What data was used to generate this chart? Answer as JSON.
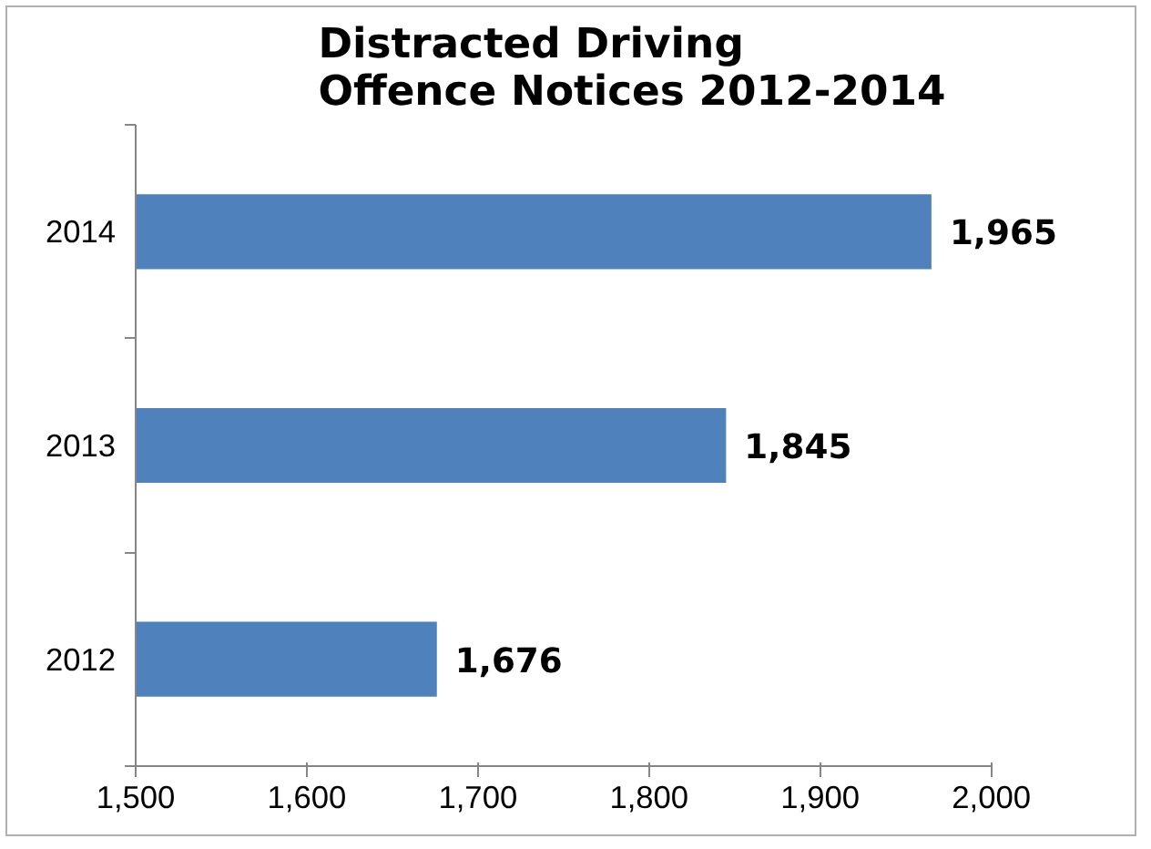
{
  "chart_data": {
    "type": "bar",
    "orientation": "horizontal",
    "title": "Distracted Driving Offence Notices 2012-2014",
    "categories": [
      "2014",
      "2013",
      "2012"
    ],
    "values": [
      1965,
      1845,
      1676
    ],
    "value_labels": [
      "1,965",
      "1,845",
      "1,676"
    ],
    "color": "#4f81bd",
    "xlim": [
      1500,
      2000
    ],
    "xticks": [
      {
        "value": 1500,
        "label": "1,500"
      },
      {
        "value": 1600,
        "label": "1,600"
      },
      {
        "value": 1700,
        "label": "1,700"
      },
      {
        "value": 1800,
        "label": "1,800"
      },
      {
        "value": 1900,
        "label": "1,900"
      },
      {
        "value": 2000,
        "label": "2,000"
      }
    ],
    "grid": false
  }
}
